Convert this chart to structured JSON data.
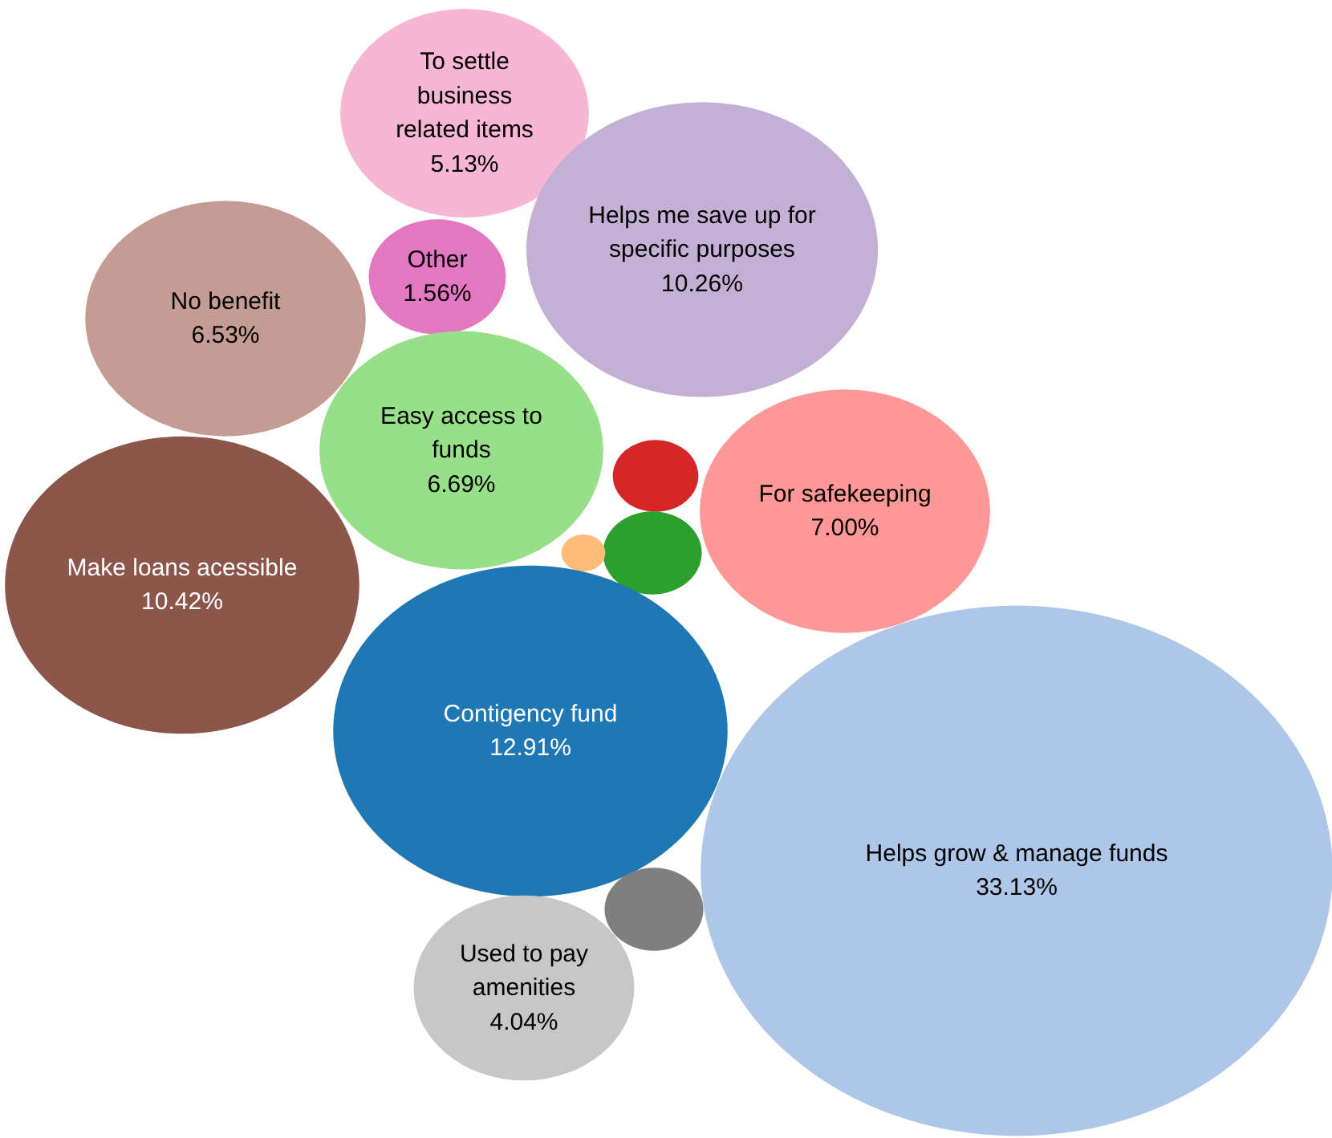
{
  "chart_data": {
    "type": "other",
    "categories": [
      "To settle\nbusiness\nrelated items",
      "Other",
      "Helps me save up for\nspecific purposes",
      "No benefit",
      "Easy access to\nfunds",
      null,
      null,
      null,
      "For safekeeping",
      "Make loans acessible",
      "Contigency fund",
      "Helps grow & manage funds",
      null,
      "Used to pay\namenities"
    ],
    "values": [
      5.13,
      1.56,
      10.26,
      6.53,
      6.69,
      null,
      null,
      null,
      7.0,
      10.42,
      12.91,
      33.13,
      null,
      4.04
    ],
    "value_labels": [
      "5.13%",
      "1.56%",
      "10.26%",
      "6.53%",
      "6.69%",
      null,
      null,
      null,
      "7.00%",
      "10.42%",
      "12.91%",
      "33.13%",
      null,
      "4.04%"
    ],
    "colors": [
      "#f7b6d2",
      "#e377c2",
      "#c5b0d5",
      "#c49c94",
      "#98df8a",
      "#d62728",
      "#2ca02c",
      "#ffbb78",
      "#ff9896",
      "#8c564b",
      "#1f77b4",
      "#aec7e8",
      "#7f7f7f",
      "#c7c7c7"
    ]
  }
}
